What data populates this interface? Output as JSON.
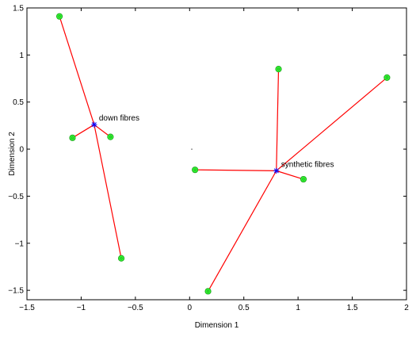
{
  "chart_data": {
    "type": "scatter",
    "title": "",
    "xlabel": "Dimension 1",
    "ylabel": "Dimension 2",
    "xlim": [
      -1.5,
      2
    ],
    "ylim": [
      -1.6,
      1.5
    ],
    "xticks": [
      -1.5,
      -1,
      -0.5,
      0,
      0.5,
      1,
      1.5,
      2
    ],
    "xtick_labels": [
      "−1.5",
      "−1",
      "−0.5",
      "0",
      "0.5",
      "1",
      "1.5",
      "2"
    ],
    "yticks": [
      -1.5,
      -1,
      -0.5,
      0,
      0.5,
      1,
      1.5
    ],
    "ytick_labels": [
      "−1.5",
      "−1",
      "−0.5",
      "0",
      "0.5",
      "1",
      "1.5"
    ],
    "grid": false,
    "legend": "none",
    "colors": {
      "line": "#ff0000",
      "point_fill": "#33ff33",
      "point_edge": "#22aa22",
      "centroid": "#0000ff"
    },
    "groups": [
      {
        "label": "down fibres",
        "centroid": [
          -0.88,
          0.26
        ],
        "points": [
          [
            -1.2,
            1.41
          ],
          [
            -1.08,
            0.12
          ],
          [
            -0.73,
            0.13
          ],
          [
            -0.63,
            -1.16
          ]
        ]
      },
      {
        "label": "synthetic fibres",
        "centroid": [
          0.8,
          -0.23
        ],
        "points": [
          [
            0.82,
            0.85
          ],
          [
            1.82,
            0.76
          ],
          [
            0.05,
            -0.22
          ],
          [
            1.05,
            -0.32
          ],
          [
            0.17,
            -1.51
          ]
        ]
      }
    ],
    "stray_point": [
      0.02,
      0.0
    ]
  }
}
